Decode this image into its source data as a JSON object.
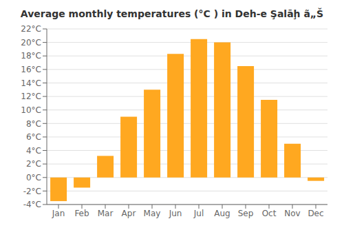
{
  "chart_data": {
    "type": "bar",
    "title": "Average monthly temperatures (°C ) in Deh-e Şalāḩ ã„Š",
    "categories": [
      "Jan",
      "Feb",
      "Mar",
      "Apr",
      "May",
      "Jun",
      "Jul",
      "Aug",
      "Sep",
      "Oct",
      "Nov",
      "Dec"
    ],
    "values": [
      -3.5,
      -1.5,
      3.2,
      9.0,
      13.0,
      18.3,
      20.5,
      20.0,
      16.5,
      11.5,
      5.0,
      -0.5
    ],
    "color": "#FFA820",
    "ylim": [
      -4,
      22
    ],
    "yticks": [
      {
        "value": -4,
        "label": "-4°C"
      },
      {
        "value": -2,
        "label": "-2°C"
      },
      {
        "value": 0,
        "label": "0°C"
      },
      {
        "value": 2,
        "label": "2°C"
      },
      {
        "value": 4,
        "label": "4°C"
      },
      {
        "value": 6,
        "label": "6°C"
      },
      {
        "value": 8,
        "label": "8°C"
      },
      {
        "value": 10,
        "label": "10°C"
      },
      {
        "value": 12,
        "label": "12°C"
      },
      {
        "value": 14,
        "label": "14°C"
      },
      {
        "value": 16,
        "label": "16°C"
      },
      {
        "value": 18,
        "label": "18°C"
      },
      {
        "value": 20,
        "label": "20°C"
      },
      {
        "value": 22,
        "label": "22°C"
      }
    ],
    "grid": true
  }
}
